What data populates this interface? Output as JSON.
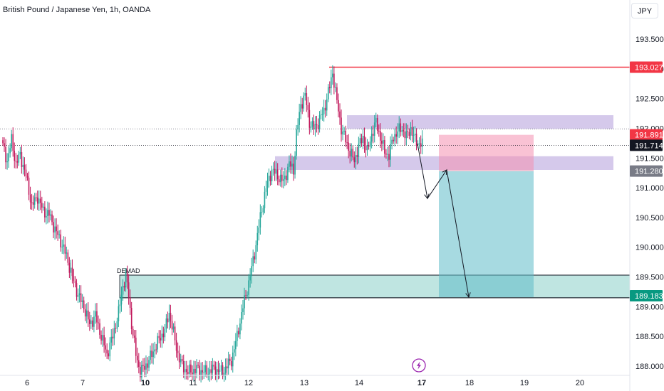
{
  "header": {
    "title": "British Pound / Japanese Yen, 1h, OANDA"
  },
  "currency": "JPY",
  "colors": {
    "up": "#26a69a",
    "down": "#c2185b",
    "resistance": "#f23645",
    "supply": "#b39ddb",
    "demand": "#80cbc4",
    "stop": "#f48fb1",
    "target": "#5fbcc8"
  },
  "chart_data": {
    "type": "candlestick",
    "title": "British Pound / Japanese Yen, 1h, OANDA",
    "x_ticks": [
      "6",
      "7",
      "10",
      "11",
      "12",
      "13",
      "14",
      "17",
      "18",
      "19",
      "20"
    ],
    "bold_ticks": [
      "10",
      "17"
    ],
    "y_ticks": [
      "193.500",
      "193.000",
      "192.500",
      "192.000",
      "191.500",
      "191.000",
      "190.500",
      "190.000",
      "189.500",
      "189.000",
      "188.500",
      "188.000"
    ],
    "ylim": [
      187.85,
      193.95
    ],
    "price_tags": [
      {
        "value": 193.027,
        "label": "193.027",
        "color": "#f23645"
      },
      {
        "value": 191.891,
        "label": "191.891",
        "color": "#f23645"
      },
      {
        "value": 191.714,
        "label": "191.714",
        "color": "#131722"
      },
      {
        "value": 191.28,
        "label": "191.280",
        "color": "#787b86"
      },
      {
        "value": 189.183,
        "label": "189.183",
        "color": "#089981"
      }
    ],
    "resistance_level": 193.027,
    "current_price": 191.714,
    "zones": [
      {
        "name": "supply-zone-upper",
        "top": 192.22,
        "bottom": 191.99
      },
      {
        "name": "supply-zone-lower",
        "top": 191.53,
        "bottom": 191.3
      },
      {
        "name": "demand-zone",
        "top": 189.53,
        "bottom": 189.15,
        "label": "DEMAD"
      }
    ],
    "position": {
      "entry": 191.28,
      "stop": 191.89,
      "target": 189.16
    },
    "path": [
      191.74,
      190.82,
      191.3,
      189.16
    ],
    "key_points": [
      [
        0,
        191.7
      ],
      [
        3,
        191.45
      ],
      [
        6,
        191.8
      ],
      [
        9,
        191.4
      ],
      [
        12,
        191.55
      ],
      [
        16,
        191.2
      ],
      [
        20,
        190.7
      ],
      [
        24,
        190.85
      ],
      [
        28,
        190.6
      ],
      [
        32,
        190.55
      ],
      [
        36,
        190.3
      ],
      [
        40,
        190.1
      ],
      [
        44,
        189.85
      ],
      [
        48,
        189.5
      ],
      [
        52,
        189.2
      ],
      [
        56,
        189.0
      ],
      [
        60,
        188.7
      ],
      [
        64,
        188.85
      ],
      [
        68,
        188.5
      ],
      [
        72,
        188.2
      ],
      [
        76,
        188.5
      ],
      [
        80,
        188.9
      ],
      [
        83,
        189.35
      ],
      [
        85,
        189.5
      ],
      [
        87,
        189.2
      ],
      [
        89,
        188.7
      ],
      [
        92,
        188.2
      ],
      [
        95,
        187.9
      ],
      [
        100,
        188.05
      ],
      [
        104,
        188.25
      ],
      [
        108,
        188.45
      ],
      [
        112,
        188.6
      ],
      [
        115,
        188.9
      ],
      [
        118,
        188.55
      ],
      [
        121,
        188.2
      ],
      [
        124,
        188.0
      ],
      [
        128,
        187.9
      ],
      [
        134,
        187.95
      ],
      [
        140,
        187.9
      ],
      [
        146,
        187.95
      ],
      [
        152,
        187.9
      ],
      [
        158,
        188.1
      ],
      [
        162,
        188.5
      ],
      [
        166,
        189.0
      ],
      [
        170,
        189.4
      ],
      [
        174,
        189.9
      ],
      [
        178,
        190.5
      ],
      [
        182,
        191.0
      ],
      [
        186,
        191.3
      ],
      [
        190,
        191.2
      ],
      [
        194,
        191.1
      ],
      [
        198,
        191.4
      ],
      [
        201,
        191.3
      ],
      [
        203,
        191.9
      ],
      [
        206,
        192.4
      ],
      [
        209,
        192.55
      ],
      [
        212,
        192.1
      ],
      [
        215,
        192.0
      ],
      [
        218,
        192.1
      ],
      [
        222,
        192.3
      ],
      [
        226,
        192.7
      ],
      [
        228,
        192.95
      ],
      [
        230,
        192.6
      ],
      [
        232,
        192.3
      ],
      [
        234,
        192.0
      ],
      [
        237,
        191.8
      ],
      [
        240,
        191.6
      ],
      [
        243,
        191.45
      ],
      [
        246,
        191.7
      ],
      [
        249,
        191.85
      ],
      [
        252,
        191.6
      ],
      [
        255,
        191.9
      ],
      [
        258,
        192.1
      ],
      [
        261,
        191.85
      ],
      [
        264,
        191.6
      ],
      [
        267,
        191.55
      ],
      [
        270,
        191.85
      ],
      [
        273,
        191.95
      ],
      [
        276,
        192.0
      ],
      [
        279,
        191.85
      ],
      [
        282,
        192.0
      ],
      [
        285,
        191.8
      ],
      [
        288,
        191.75
      ],
      [
        290,
        191.72
      ]
    ]
  }
}
